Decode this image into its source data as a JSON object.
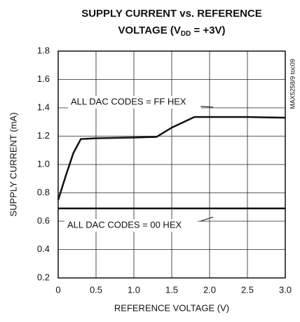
{
  "chart_data": {
    "type": "line",
    "title": {
      "line1": "SUPPLY CURRENT vs. REFERENCE",
      "line2": [
        "VOLTAGE (V",
        "DD",
        " = +3V)"
      ]
    },
    "x_label": "REFERENCE VOLTAGE (V)",
    "y_label": "SUPPLY CURRENT (mA)",
    "side_note": "MAX5258/9 toc09",
    "xlim": [
      0,
      3
    ],
    "ylim": [
      0.2,
      1.8
    ],
    "xticks": [
      0,
      0.5,
      {
        "value": 1,
        "label": "1.0"
      },
      1.5,
      {
        "value": 2,
        "label": "2.0"
      },
      2.5,
      {
        "value": 3,
        "label": "3.0"
      }
    ],
    "yticks": [
      0.2,
      0.4,
      0.6,
      0.8,
      {
        "value": 1,
        "label": "1.0"
      },
      1.2,
      1.4,
      1.6,
      1.8
    ],
    "grid": true,
    "series": [
      {
        "name": "ALL DAC CODES = FF HEX",
        "color": "#111111",
        "x": [
          0,
          0.1,
          0.2,
          0.3,
          0.5,
          1.0,
          1.3,
          1.5,
          1.8,
          2.0,
          2.5,
          3.0
        ],
        "values": [
          0.75,
          0.92,
          1.08,
          1.18,
          1.185,
          1.19,
          1.195,
          1.26,
          1.335,
          1.335,
          1.335,
          1.33
        ]
      },
      {
        "name": "ALL DAC CODES = 00 HEX",
        "color": "#111111",
        "x": [
          0,
          0.5,
          1.0,
          1.5,
          2.0,
          2.5,
          3.0
        ],
        "values": [
          0.69,
          0.69,
          0.69,
          0.69,
          0.69,
          0.69,
          0.69
        ]
      }
    ]
  }
}
